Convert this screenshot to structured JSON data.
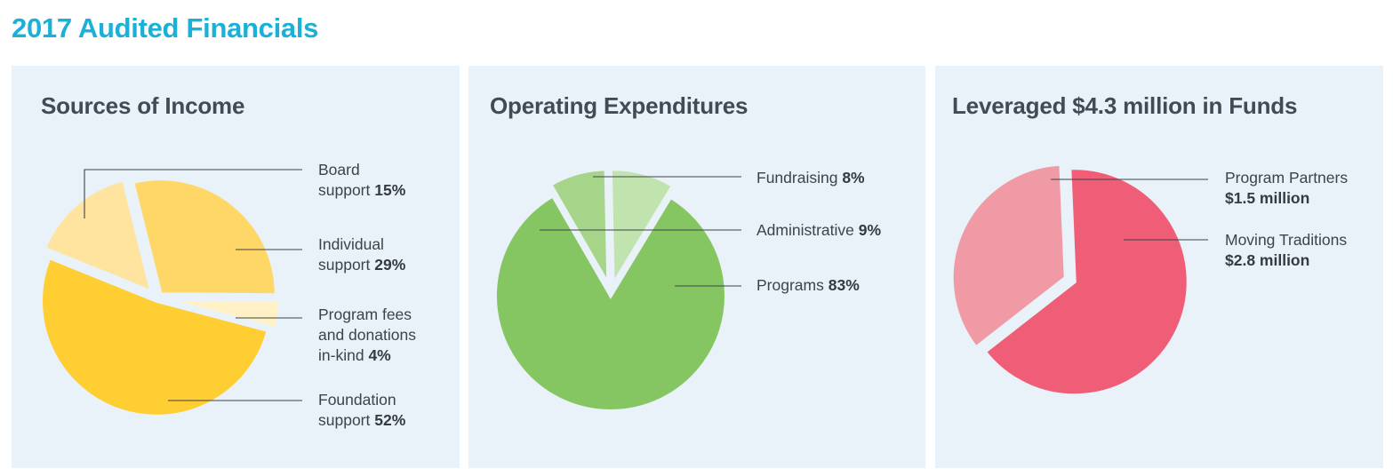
{
  "page_title": "2017 Audited Financials",
  "chart_data": [
    {
      "type": "pie",
      "title": "Sources of Income",
      "slices": [
        {
          "line1": "Board",
          "line2": "support",
          "label": "",
          "value_label": "15%",
          "value": 15,
          "color": "#fee49f"
        },
        {
          "line1": "Individual",
          "line2": "support",
          "label": "",
          "value_label": "29%",
          "value": 29,
          "color": "#fed766"
        },
        {
          "line1": "Program fees",
          "line2": "and donations",
          "label": "in-kind",
          "value_label": "4%",
          "value": 4,
          "color": "#fff0c6"
        },
        {
          "line1": "Foundation",
          "line2": "support",
          "label": "",
          "value_label": "52%",
          "value": 52,
          "color": "#ffce33"
        }
      ]
    },
    {
      "type": "pie",
      "title": "Operating Expenditures",
      "slices": [
        {
          "label": "Fundraising",
          "value_label": "8%",
          "value": 8,
          "color": "#a6d58a"
        },
        {
          "label": "Administrative",
          "value_label": "9%",
          "value": 9,
          "color": "#c1e3ae"
        },
        {
          "label": "Programs",
          "value_label": "83%",
          "value": 83,
          "color": "#86c662"
        }
      ]
    },
    {
      "type": "pie",
      "title": "Leveraged $4.3 million in Funds",
      "slices": [
        {
          "label": "Program Partners",
          "value_label": "$1.5 million",
          "value": 1.5,
          "color": "#f09aa5"
        },
        {
          "label": "Moving Traditions",
          "value_label": "$2.8 million",
          "value": 2.8,
          "color": "#f05d77"
        }
      ]
    }
  ]
}
